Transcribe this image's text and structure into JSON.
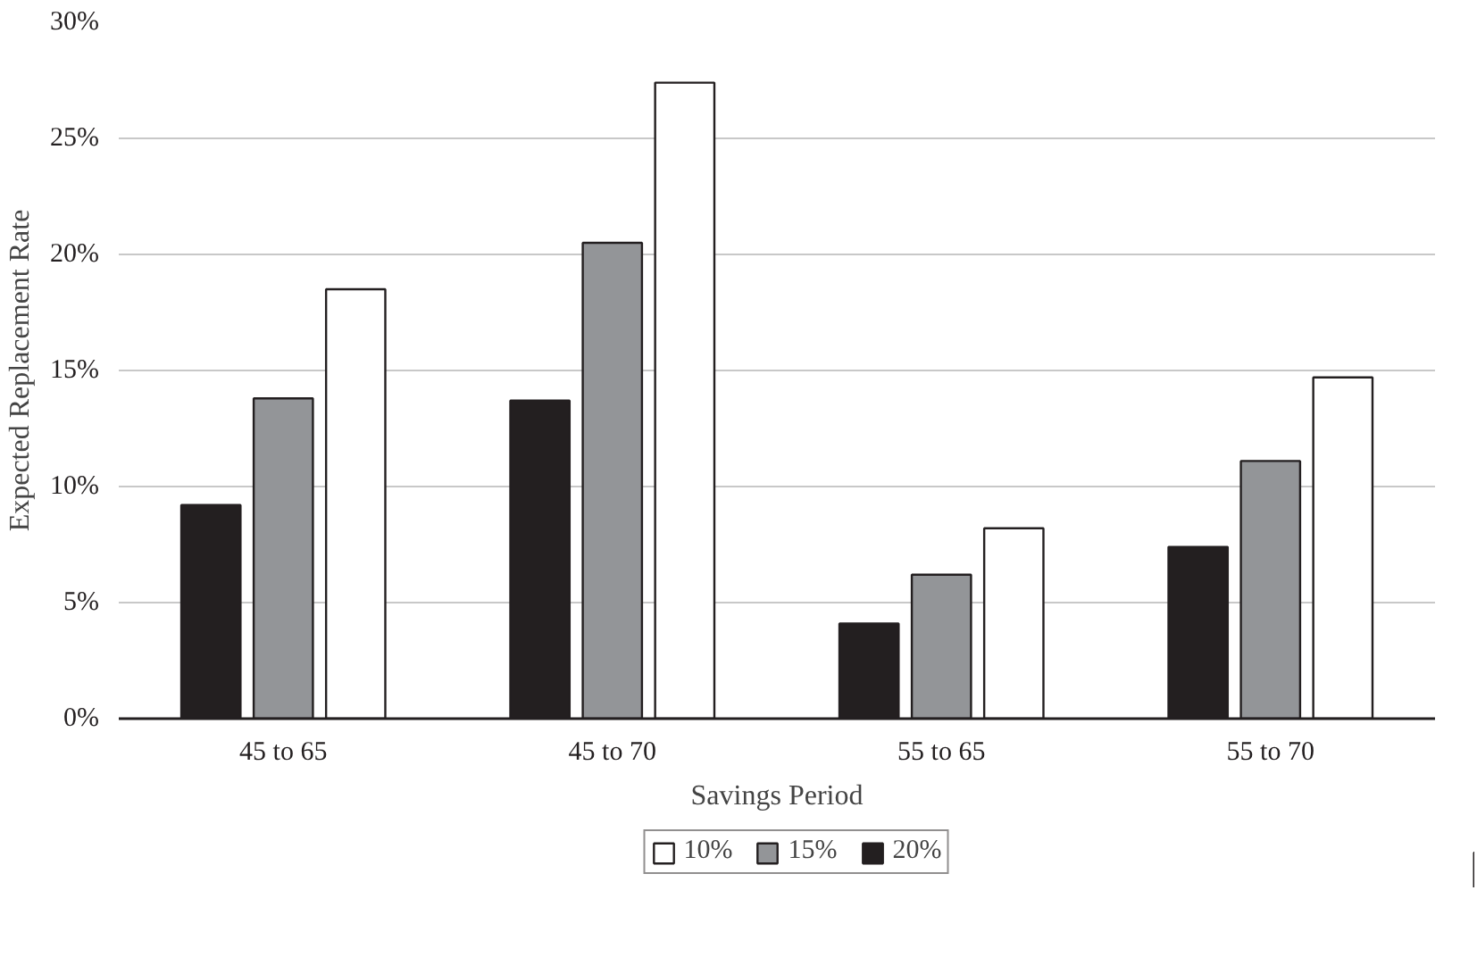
{
  "chart_data": {
    "type": "bar",
    "xlabel": "Savings Period",
    "ylabel": "Expected Replacement Rate",
    "categories": [
      "45 to 65",
      "45 to 70",
      "55 to 65",
      "55 to 70"
    ],
    "series": [
      {
        "name": "20%",
        "color": "#231f20",
        "values": [
          9.2,
          13.7,
          4.1,
          7.4
        ]
      },
      {
        "name": "15%",
        "color": "#939598",
        "values": [
          13.8,
          20.5,
          6.2,
          11.1
        ]
      },
      {
        "name": "10%",
        "color": "#ffffff",
        "values": [
          18.5,
          27.4,
          8.2,
          14.7
        ]
      }
    ],
    "ylim": [
      0,
      30
    ],
    "yticks": [
      {
        "value": 0,
        "label": "0%"
      },
      {
        "value": 5,
        "label": "5%"
      },
      {
        "value": 10,
        "label": "10%"
      },
      {
        "value": 15,
        "label": "15%"
      },
      {
        "value": 20,
        "label": "20%"
      },
      {
        "value": 25,
        "label": "25%"
      },
      {
        "value": 30,
        "label": "30%"
      }
    ],
    "grid": "y",
    "legend": "bottom"
  }
}
